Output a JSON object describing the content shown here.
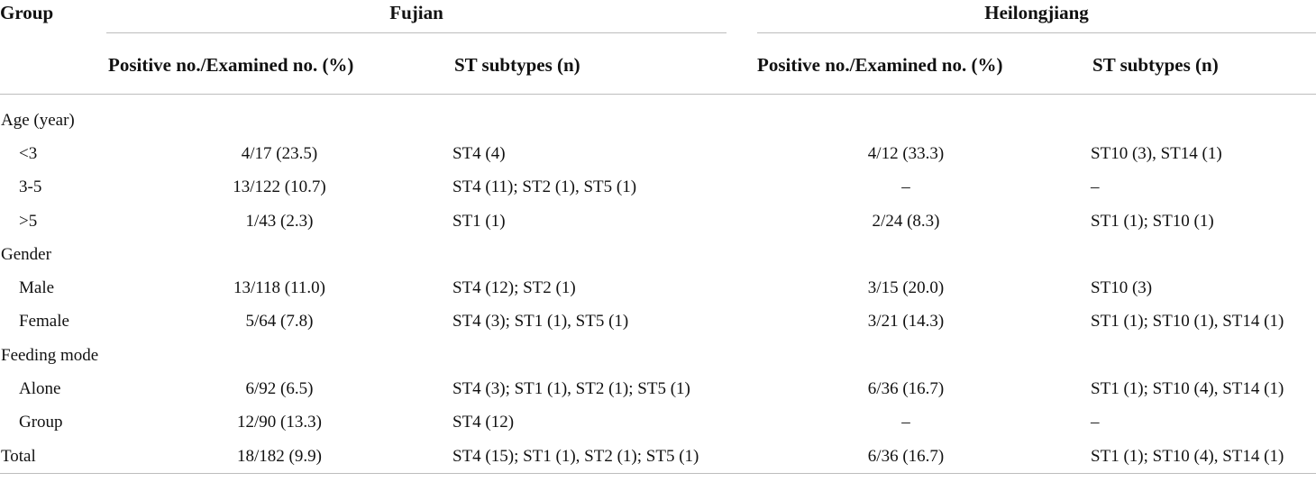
{
  "headers": {
    "group": "Group",
    "fujian": "Fujian",
    "heilongjiang": "Heilongjiang",
    "positive_examined": "Positive no./Examined no. (%)",
    "st_subtypes": "ST subtypes (n)"
  },
  "rows": [
    {
      "label": "Age (year)",
      "indent": false,
      "f_pos": "",
      "f_st": "",
      "h_pos": "",
      "h_st": ""
    },
    {
      "label": "<3",
      "indent": true,
      "f_pos": "4/17 (23.5)",
      "f_st": "ST4 (4)",
      "h_pos": "4/12 (33.3)",
      "h_st": "ST10 (3), ST14 (1)"
    },
    {
      "label": "3-5",
      "indent": true,
      "f_pos": "13/122 (10.7)",
      "f_st": "ST4 (11); ST2 (1), ST5 (1)",
      "h_pos": "–",
      "h_st": "–"
    },
    {
      "label": ">5",
      "indent": true,
      "f_pos": "1/43 (2.3)",
      "f_st": "ST1 (1)",
      "h_pos": "2/24 (8.3)",
      "h_st": "ST1 (1); ST10 (1)"
    },
    {
      "label": "Gender",
      "indent": false,
      "f_pos": "",
      "f_st": "",
      "h_pos": "",
      "h_st": ""
    },
    {
      "label": "Male",
      "indent": true,
      "f_pos": "13/118 (11.0)",
      "f_st": "ST4 (12); ST2 (1)",
      "h_pos": "3/15 (20.0)",
      "h_st": "ST10 (3)"
    },
    {
      "label": "Female",
      "indent": true,
      "f_pos": "5/64 (7.8)",
      "f_st": "ST4 (3); ST1 (1), ST5 (1)",
      "h_pos": "3/21 (14.3)",
      "h_st": "ST1 (1); ST10 (1), ST14 (1)"
    },
    {
      "label": "Feeding mode",
      "indent": false,
      "f_pos": "",
      "f_st": "",
      "h_pos": "",
      "h_st": ""
    },
    {
      "label": "Alone",
      "indent": true,
      "f_pos": "6/92 (6.5)",
      "f_st": "ST4 (3); ST1 (1), ST2 (1); ST5 (1)",
      "h_pos": "6/36 (16.7)",
      "h_st": "ST1 (1); ST10 (4), ST14 (1)"
    },
    {
      "label": "Group",
      "indent": true,
      "f_pos": "12/90 (13.3)",
      "f_st": "ST4 (12)",
      "h_pos": "–",
      "h_st": "–"
    },
    {
      "label": "Total",
      "indent": false,
      "f_pos": "18/182 (9.9)",
      "f_st": "ST4 (15); ST1 (1), ST2 (1); ST5 (1)",
      "h_pos": "6/36 (16.7)",
      "h_st": "ST1 (1); ST10 (4), ST14 (1)"
    }
  ]
}
